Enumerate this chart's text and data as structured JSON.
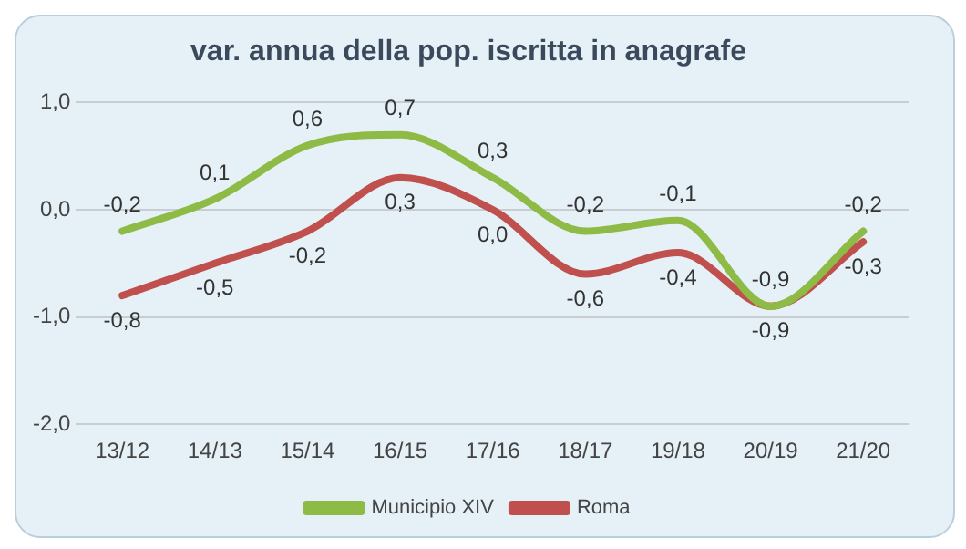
{
  "chart_data": {
    "type": "line",
    "title": "var. annua della pop. iscritta in anagrafe",
    "categories": [
      "13/12",
      "14/13",
      "15/14",
      "16/15",
      "17/16",
      "18/17",
      "19/18",
      "20/19",
      "21/20"
    ],
    "series": [
      {
        "name": "Municipio XIV",
        "color": "#8dbb45",
        "values": [
          -0.2,
          0.1,
          0.6,
          0.7,
          0.3,
          -0.2,
          -0.1,
          -0.9,
          -0.2
        ],
        "value_labels": [
          "-0,2",
          "0,1",
          "0,6",
          "0,7",
          "0,3",
          "-0,2",
          "-0,1",
          "-0,9",
          "-0,2"
        ]
      },
      {
        "name": "Roma",
        "color": "#c0504d",
        "values": [
          -0.8,
          -0.5,
          -0.2,
          0.3,
          0.0,
          -0.6,
          -0.4,
          -0.9,
          -0.3
        ],
        "value_labels": [
          "-0,8",
          "-0,5",
          "-0,2",
          "0,3",
          "0,0",
          "-0,6",
          "-0,4",
          "-0,9",
          "-0,3"
        ]
      }
    ],
    "ylim": [
      -2,
      1
    ],
    "yticks": [
      {
        "value": -2,
        "label": "-2,0"
      },
      {
        "value": -1,
        "label": "-1,0"
      },
      {
        "value": 0,
        "label": "0,0"
      },
      {
        "value": 1,
        "label": "1,0"
      }
    ],
    "grid": "y",
    "legend": "bottom",
    "marker": "none",
    "line_style": "solid"
  }
}
